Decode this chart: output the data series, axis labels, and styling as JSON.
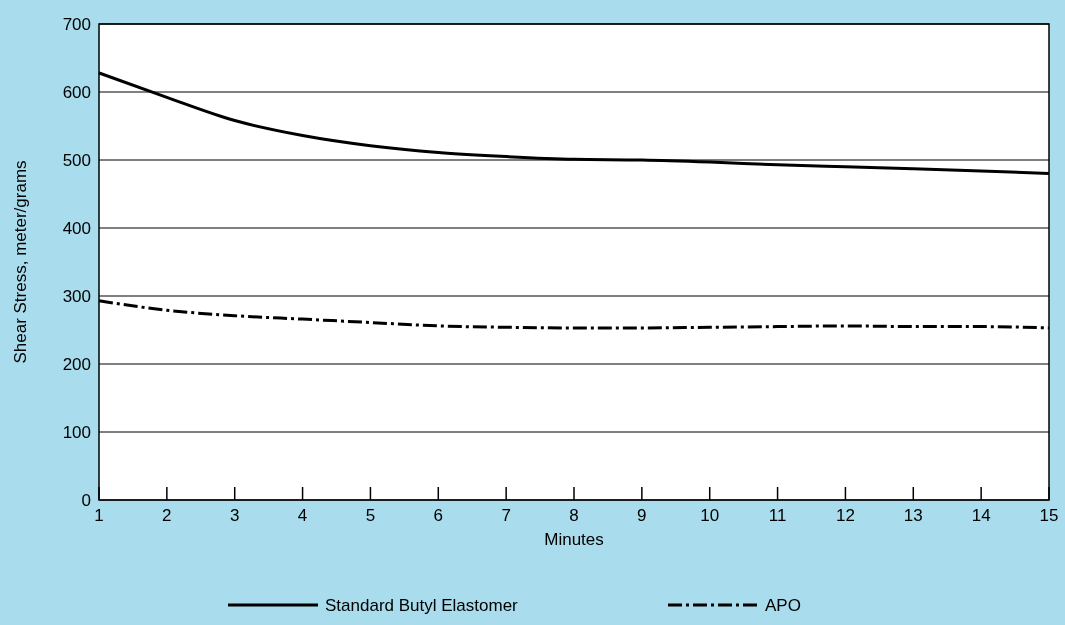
{
  "chart_data": {
    "type": "line",
    "xlabel": "Minutes",
    "ylabel": "Shear Stress, meter/grams",
    "x": [
      1,
      2,
      3,
      4,
      5,
      6,
      7,
      8,
      9,
      10,
      11,
      12,
      13,
      14,
      15
    ],
    "series": [
      {
        "name": "Standard Butyl Elastomer",
        "color": "#000000",
        "line_style": "solid",
        "values": [
          628,
          592,
          558,
          536,
          521,
          511,
          505,
          501,
          500,
          497,
          493,
          490,
          487,
          484,
          480
        ]
      },
      {
        "name": "APO",
        "color": "#000000",
        "line_style": "dashed",
        "values": [
          293,
          279,
          271,
          266,
          261,
          256,
          254,
          253,
          253,
          254,
          255,
          256,
          255,
          255,
          253
        ]
      }
    ],
    "xlim": [
      1,
      15
    ],
    "xticks": [
      1,
      2,
      3,
      4,
      5,
      6,
      7,
      8,
      9,
      10,
      11,
      12,
      13,
      14,
      15
    ],
    "ylim": [
      0,
      700
    ],
    "yticks": [
      0,
      100,
      200,
      300,
      400,
      500,
      600,
      700
    ],
    "grid": "y",
    "legend": "bottom"
  }
}
